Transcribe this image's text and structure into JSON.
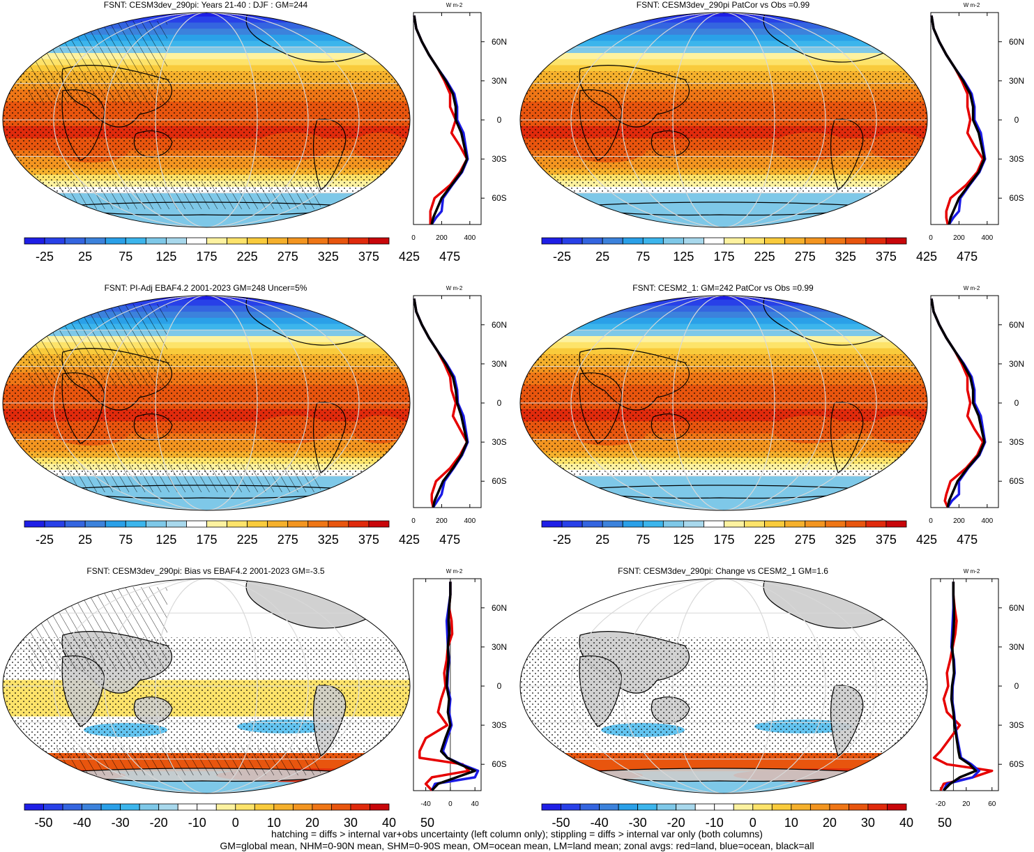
{
  "colors": {
    "abs_scale": [
      "#1e1ee6",
      "#2840e8",
      "#3465e0",
      "#3c82dc",
      "#2aa0e8",
      "#3cb5ec",
      "#7ec8e8",
      "#a8d8ec",
      "#ffffff",
      "#fdf2a0",
      "#fde36a",
      "#f9cb3c",
      "#f5b02c",
      "#f39520",
      "#ef7616",
      "#e8550e",
      "#e02a0c",
      "#c8060a"
    ],
    "diff_scale": [
      "#1e1ee6",
      "#2840e8",
      "#3465e0",
      "#3c82dc",
      "#2aa0e8",
      "#3cb5ec",
      "#7ec8e8",
      "#a8d8ec",
      "#ffffff",
      "#ffffff",
      "#fdf2a0",
      "#fde36a",
      "#f9cb3c",
      "#f5b02c",
      "#f39520",
      "#ef7616",
      "#e8550e",
      "#e02a0c",
      "#c8060a"
    ],
    "land_line": "#e60000",
    "ocean_line": "#1a1ae6",
    "all_line": "#000000",
    "land_mask": "#cccccc"
  },
  "chart_data": [
    {
      "type": "heatmap",
      "id": "p1",
      "title": "FSNT: CESM3dev_290pi: Years 21-40 : DJF : GM=244",
      "colorbar": {
        "ticks": [
          "-25",
          "25",
          "75",
          "125",
          "175",
          "225",
          "275",
          "325",
          "375",
          "425",
          "475"
        ],
        "scale": "abs"
      },
      "zonal": {
        "type": "line",
        "xlabel": "W m-2",
        "xticks": [
          0,
          200,
          400
        ],
        "xlim": [
          0,
          480
        ],
        "yticks": [
          "60N",
          "30N",
          "0",
          "30S",
          "60S"
        ],
        "lat": [
          80,
          70,
          60,
          50,
          40,
          30,
          20,
          10,
          0,
          -10,
          -20,
          -30,
          -40,
          -50,
          -60,
          -70,
          -75,
          -80
        ],
        "series": [
          {
            "name": "all",
            "values": [
              5,
              20,
              60,
              110,
              170,
              230,
              280,
              300,
              300,
              340,
              360,
              380,
              340,
              270,
              200,
              160,
              140,
              130
            ]
          },
          {
            "name": "land",
            "values": [
              5,
              20,
              60,
              110,
              170,
              220,
              260,
              260,
              300,
              270,
              330,
              380,
              330,
              260,
              150,
              120,
              120,
              120
            ]
          },
          {
            "name": "ocean",
            "values": [
              5,
              20,
              60,
              110,
              170,
              235,
              290,
              310,
              310,
              355,
              370,
              385,
              345,
              275,
              210,
              200,
              160,
              130
            ]
          }
        ]
      }
    },
    {
      "type": "heatmap",
      "id": "p2",
      "title": "FSNT: CESM3dev_290pi PatCor vs Obs =0.99",
      "colorbar": {
        "ticks": [
          "-25",
          "25",
          "75",
          "125",
          "175",
          "225",
          "275",
          "325",
          "375",
          "425",
          "475"
        ],
        "scale": "abs"
      },
      "zonal": {
        "type": "line",
        "xlabel": "W m-2",
        "xticks": [
          0,
          200,
          400
        ],
        "xlim": [
          0,
          480
        ],
        "yticks": [
          "60N",
          "30N",
          "0",
          "30S",
          "60S"
        ],
        "lat": [
          80,
          70,
          60,
          50,
          40,
          30,
          20,
          10,
          0,
          -10,
          -20,
          -30,
          -40,
          -50,
          -60,
          -70,
          -75,
          -80
        ],
        "series": [
          {
            "name": "all",
            "values": [
              5,
              20,
              60,
              110,
              170,
              230,
              280,
              300,
              300,
              340,
              360,
              380,
              340,
              270,
              200,
              160,
              140,
              130
            ]
          },
          {
            "name": "land",
            "values": [
              5,
              20,
              60,
              110,
              170,
              220,
              260,
              260,
              280,
              260,
              310,
              370,
              330,
              250,
              140,
              110,
              110,
              120
            ]
          },
          {
            "name": "ocean",
            "values": [
              5,
              20,
              60,
              110,
              170,
              235,
              290,
              310,
              310,
              355,
              370,
              385,
              345,
              275,
              210,
              200,
              160,
              130
            ]
          }
        ]
      }
    },
    {
      "type": "heatmap",
      "id": "p3",
      "title": "FSNT: PI-Adj EBAF4.2 2001-2023 GM=248 Uncer=5%",
      "colorbar": {
        "ticks": [
          "-25",
          "25",
          "75",
          "125",
          "175",
          "225",
          "275",
          "325",
          "375",
          "425",
          "475"
        ],
        "scale": "abs"
      },
      "zonal": {
        "type": "line",
        "xlabel": "W m-2",
        "xticks": [
          0,
          200,
          400
        ],
        "xlim": [
          0,
          480
        ],
        "yticks": [
          "60N",
          "30N",
          "0",
          "30S",
          "60S"
        ],
        "lat": [
          80,
          70,
          60,
          50,
          40,
          30,
          20,
          10,
          0,
          -10,
          -20,
          -30,
          -40,
          -50,
          -60,
          -70,
          -75,
          -80
        ],
        "series": [
          {
            "name": "all",
            "values": [
              5,
              20,
              60,
              110,
              170,
              230,
              280,
              300,
              310,
              340,
              360,
              380,
              340,
              280,
              210,
              170,
              150,
              140
            ]
          },
          {
            "name": "land",
            "values": [
              5,
              20,
              60,
              110,
              170,
              220,
              260,
              270,
              300,
              280,
              330,
              380,
              330,
              260,
              160,
              130,
              130,
              140
            ]
          },
          {
            "name": "ocean",
            "values": [
              5,
              20,
              60,
              110,
              170,
              235,
              290,
              310,
              315,
              355,
              370,
              385,
              345,
              285,
              220,
              200,
              170,
              140
            ]
          }
        ]
      }
    },
    {
      "type": "heatmap",
      "id": "p4",
      "title": "FSNT: CESM2_1: GM=242 PatCor vs Obs =0.99",
      "colorbar": {
        "ticks": [
          "-25",
          "25",
          "75",
          "125",
          "175",
          "225",
          "275",
          "325",
          "375",
          "425",
          "475"
        ],
        "scale": "abs"
      },
      "zonal": {
        "type": "line",
        "xlabel": "W m-2",
        "xticks": [
          0,
          200,
          400
        ],
        "xlim": [
          0,
          480
        ],
        "yticks": [
          "60N",
          "30N",
          "0",
          "30S",
          "60S"
        ],
        "lat": [
          80,
          70,
          60,
          50,
          40,
          30,
          20,
          10,
          0,
          -10,
          -20,
          -30,
          -40,
          -50,
          -60,
          -70,
          -75,
          -80
        ],
        "series": [
          {
            "name": "all",
            "values": [
              5,
              20,
              60,
              110,
              170,
              230,
              280,
              300,
              300,
              340,
              360,
              380,
              340,
              260,
              190,
              150,
              130,
              120
            ]
          },
          {
            "name": "land",
            "values": [
              5,
              20,
              60,
              110,
              170,
              220,
              260,
              260,
              280,
              260,
              310,
              370,
              330,
              250,
              140,
              110,
              100,
              120
            ]
          },
          {
            "name": "ocean",
            "values": [
              5,
              20,
              60,
              110,
              170,
              235,
              290,
              310,
              310,
              355,
              370,
              385,
              345,
              265,
              200,
              200,
              150,
              120
            ]
          }
        ]
      }
    },
    {
      "type": "heatmap",
      "id": "p5",
      "title": "FSNT: CESM3dev_290pi: Bias vs EBAF4.2 2001-2023 GM=-3.5",
      "colorbar": {
        "ticks": [
          "-50",
          "-40",
          "-30",
          "-20",
          "-10",
          "0",
          "10",
          "20",
          "30",
          "40",
          "50"
        ],
        "scale": "diff"
      },
      "zonal": {
        "type": "line",
        "xlabel": "W m-2",
        "xticks": [
          -40,
          0,
          40
        ],
        "xlim": [
          -60,
          50
        ],
        "yticks": [
          "60N",
          "30N",
          "0",
          "30S",
          "60S"
        ],
        "lat": [
          80,
          70,
          60,
          50,
          40,
          30,
          20,
          10,
          0,
          -10,
          -20,
          -30,
          -40,
          -50,
          -55,
          -60,
          -65,
          -70,
          -75,
          -80
        ],
        "series": [
          {
            "name": "all",
            "values": [
              0,
              0,
              -2,
              -3,
              -2,
              -4,
              -3,
              -5,
              -6,
              -2,
              -4,
              0,
              -8,
              -15,
              -5,
              15,
              40,
              10,
              -20,
              -30
            ]
          },
          {
            "name": "land",
            "values": [
              0,
              0,
              -2,
              2,
              3,
              -4,
              -6,
              -10,
              -8,
              -15,
              -20,
              -5,
              -40,
              -50,
              -50,
              20,
              30,
              -30,
              -40,
              -30
            ]
          },
          {
            "name": "ocean",
            "values": [
              0,
              0,
              -3,
              -6,
              -5,
              -4,
              -2,
              -4,
              -5,
              0,
              -2,
              2,
              -5,
              -12,
              -5,
              18,
              45,
              40,
              -25,
              -30
            ]
          }
        ]
      }
    },
    {
      "type": "heatmap",
      "id": "p6",
      "title": "FSNT: CESM3dev_290pi: Change vs CESM2_1 GM=1.6",
      "colorbar": {
        "ticks": [
          "-50",
          "-40",
          "-30",
          "-20",
          "-10",
          "0",
          "10",
          "20",
          "30",
          "40",
          "50"
        ],
        "scale": "diff"
      },
      "zonal": {
        "type": "line",
        "xlabel": "W m-2",
        "xticks": [
          -20,
          20,
          60
        ],
        "xlim": [
          -35,
          70
        ],
        "yticks": [
          "60N",
          "30N",
          "0",
          "30S",
          "60S"
        ],
        "lat": [
          80,
          70,
          60,
          50,
          40,
          30,
          20,
          10,
          0,
          -10,
          -20,
          -30,
          -40,
          -50,
          -55,
          -60,
          -65,
          -70,
          -75,
          -80
        ],
        "series": [
          {
            "name": "all",
            "values": [
              0,
              0,
              1,
              1,
              0,
              -2,
              0,
              1,
              -2,
              -3,
              0,
              2,
              5,
              8,
              10,
              25,
              35,
              10,
              -5,
              -15
            ]
          },
          {
            "name": "land",
            "values": [
              0,
              0,
              2,
              5,
              3,
              -1,
              -5,
              -10,
              -8,
              -15,
              -10,
              10,
              -5,
              -20,
              -30,
              -10,
              60,
              30,
              -15,
              -20
            ]
          },
          {
            "name": "ocean",
            "values": [
              0,
              0,
              0,
              -1,
              -2,
              -3,
              1,
              2,
              -1,
              -2,
              1,
              3,
              6,
              10,
              12,
              28,
              40,
              30,
              -10,
              -15
            ]
          }
        ]
      }
    }
  ],
  "footer": {
    "line1": "hatching = diffs > internal var+obs uncertainty (left column only); stippling = diffs > internal var only (both columns)",
    "line2": "GM=global mean, NHM=0-90N mean, SHM=0-90S mean, OM=ocean mean, LM=land mean; zonal avgs: red=land, blue=ocean, black=all"
  }
}
